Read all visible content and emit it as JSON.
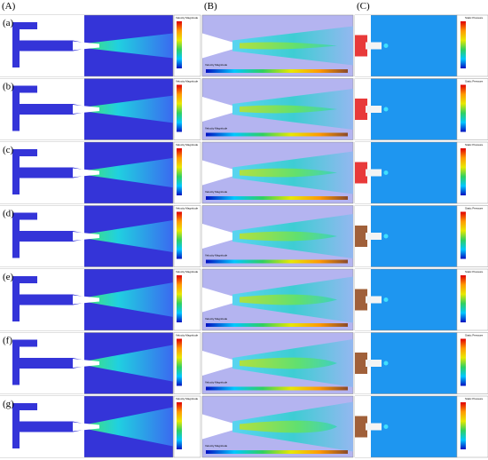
{
  "headers": [
    "(A)",
    "(B)",
    "(C)"
  ],
  "rows": [
    {
      "label": "(a)"
    },
    {
      "label": "(b)"
    },
    {
      "label": "(c)"
    },
    {
      "label": "(d)"
    },
    {
      "label": "(e)"
    },
    {
      "label": "(f)"
    },
    {
      "label": "(g)"
    }
  ],
  "colorbar_titles": {
    "velocity": "Velocity Magnitude",
    "pressure": "Static Pressure"
  }
}
